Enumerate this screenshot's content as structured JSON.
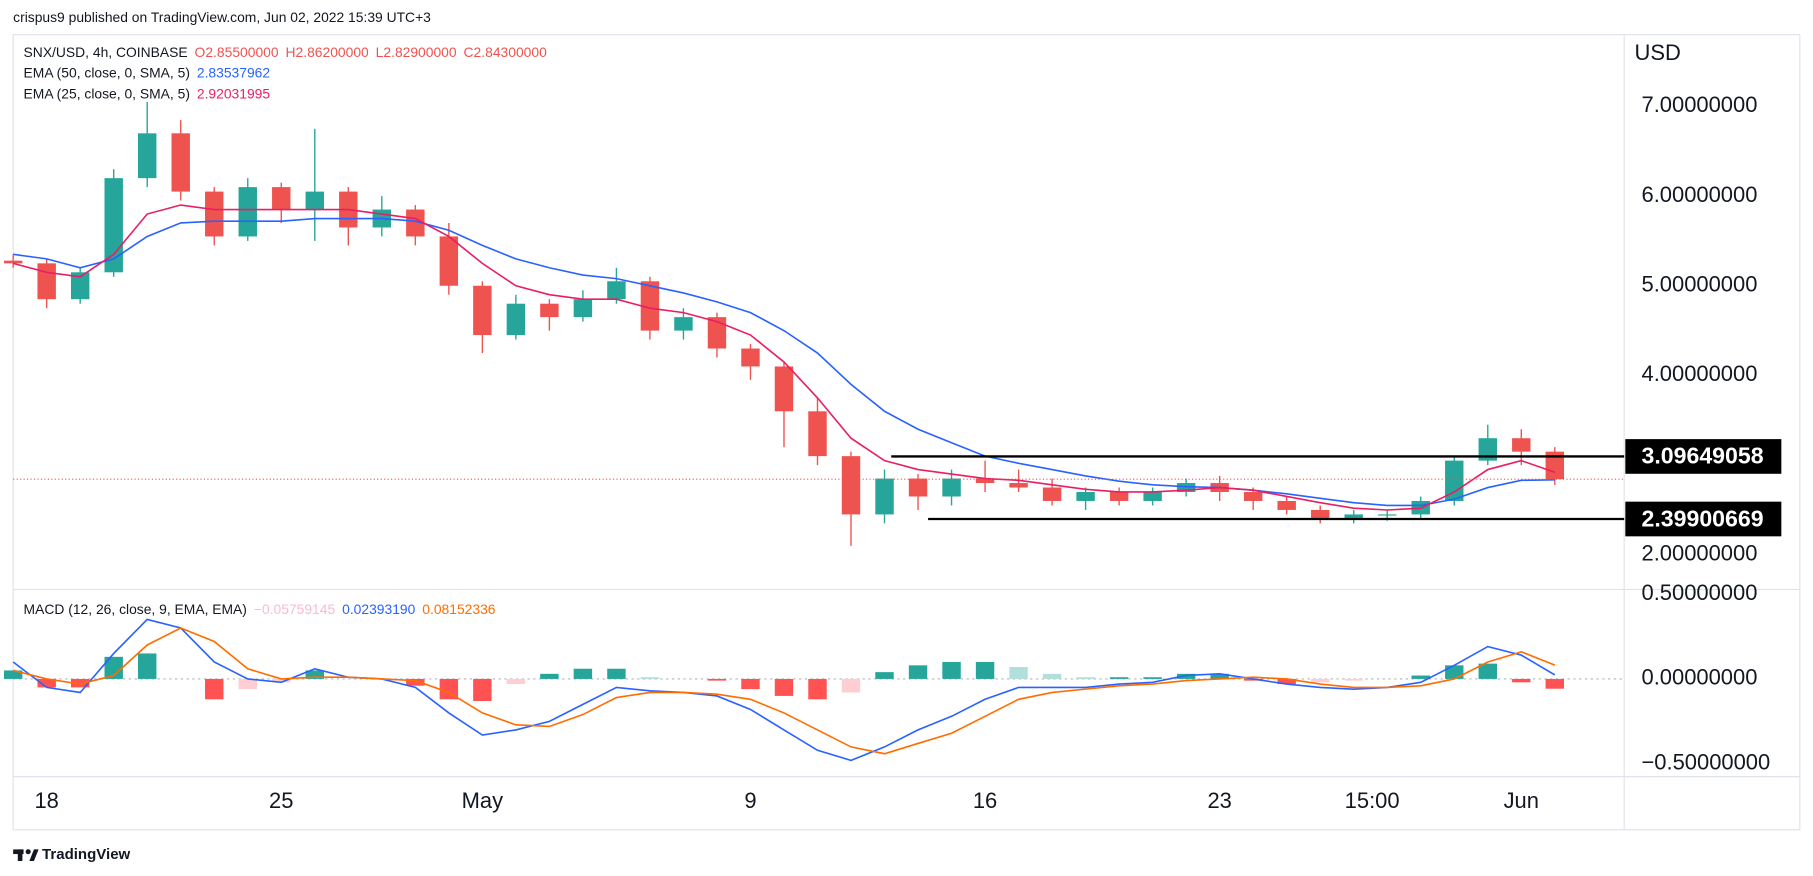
{
  "header": "crispus9 published on TradingView.com, Jun 02, 2022 15:39 UTC+3",
  "footer": "TradingView",
  "chart_data": [
    {
      "type": "candlestick",
      "title": "SNX/USD, 4h, COINBASE",
      "ohlc_legend": [
        {
          "value": 2.855,
          "label": "O2.85500000"
        },
        {
          "value": 2.862,
          "label": "H2.86200000"
        },
        {
          "value": 2.829,
          "label": "L2.82900000"
        },
        {
          "value": 2.843,
          "label": "C2.84300000"
        }
      ],
      "ohlc_color": "#ef5350",
      "up_color": "#26a69a",
      "down_color": "#ef5350",
      "y_label": "USD",
      "x": [
        -1,
        0,
        1,
        2,
        3,
        4,
        5,
        6,
        7,
        8,
        9,
        10,
        11,
        12,
        13,
        14,
        15,
        16,
        17,
        18,
        19,
        20,
        21,
        22,
        23,
        24,
        25,
        26,
        27,
        28,
        29,
        30,
        31,
        32,
        33,
        34,
        35,
        36,
        37,
        38,
        39,
        40,
        41,
        42,
        43,
        44,
        45
      ],
      "open": [
        5.28,
        5.25,
        4.85,
        5.15,
        6.2,
        6.7,
        6.05,
        5.55,
        6.1,
        5.85,
        6.05,
        5.65,
        5.85,
        5.55,
        5.0,
        4.45,
        4.8,
        4.65,
        4.85,
        5.05,
        4.5,
        4.65,
        4.3,
        4.1,
        3.6,
        3.1,
        2.45,
        2.85,
        2.65,
        2.85,
        2.8,
        2.75,
        2.6,
        2.7,
        2.6,
        2.7,
        2.8,
        2.7,
        2.6,
        2.5,
        2.4,
        2.45,
        2.45,
        2.6,
        3.05,
        3.3,
        3.15
      ],
      "high": [
        5.35,
        5.3,
        5.2,
        6.3,
        7.05,
        6.85,
        6.1,
        6.2,
        6.15,
        6.75,
        6.1,
        6.0,
        5.9,
        5.7,
        5.05,
        4.9,
        4.85,
        4.95,
        5.2,
        5.1,
        4.75,
        4.7,
        4.35,
        4.15,
        3.75,
        3.15,
        2.95,
        2.9,
        2.95,
        3.05,
        2.95,
        2.85,
        2.75,
        2.75,
        2.75,
        2.85,
        2.88,
        2.75,
        2.65,
        2.55,
        2.5,
        2.5,
        2.65,
        3.1,
        3.45,
        3.4,
        3.2
      ],
      "low": [
        5.2,
        4.75,
        4.8,
        5.1,
        6.1,
        5.95,
        5.45,
        5.5,
        5.7,
        5.5,
        5.45,
        5.55,
        5.45,
        4.9,
        4.25,
        4.4,
        4.5,
        4.6,
        4.8,
        4.4,
        4.4,
        4.2,
        3.95,
        3.2,
        3.0,
        2.1,
        2.35,
        2.5,
        2.55,
        2.7,
        2.7,
        2.55,
        2.5,
        2.55,
        2.55,
        2.65,
        2.6,
        2.5,
        2.45,
        2.35,
        2.35,
        2.38,
        2.4,
        2.55,
        3.0,
        3.0,
        2.78
      ],
      "close": [
        5.25,
        4.85,
        5.15,
        6.2,
        6.7,
        6.05,
        5.55,
        6.1,
        5.85,
        6.05,
        5.65,
        5.85,
        5.55,
        5.0,
        4.45,
        4.8,
        4.65,
        4.85,
        5.05,
        4.5,
        4.65,
        4.3,
        4.1,
        3.6,
        3.1,
        2.45,
        2.85,
        2.65,
        2.85,
        2.8,
        2.75,
        2.6,
        2.7,
        2.6,
        2.7,
        2.8,
        2.7,
        2.6,
        2.5,
        2.4,
        2.45,
        2.45,
        2.6,
        3.05,
        3.3,
        3.15,
        2.843
      ],
      "series": [
        {
          "name": "EMA (50, close, 0, SMA, 5)",
          "color": "#2962ff",
          "values": [
            5.35,
            5.3,
            5.2,
            5.3,
            5.55,
            5.7,
            5.72,
            5.72,
            5.72,
            5.75,
            5.75,
            5.75,
            5.72,
            5.62,
            5.45,
            5.3,
            5.2,
            5.12,
            5.08,
            5.0,
            4.92,
            4.82,
            4.7,
            4.5,
            4.25,
            3.9,
            3.6,
            3.4,
            3.25,
            3.1,
            3.02,
            2.95,
            2.88,
            2.82,
            2.78,
            2.76,
            2.75,
            2.72,
            2.68,
            2.63,
            2.58,
            2.55,
            2.55,
            2.62,
            2.75,
            2.83,
            2.83537962
          ]
        },
        {
          "name": "EMA (25, close, 0, SMA, 5)",
          "color": "#e91e63",
          "values": [
            5.25,
            5.15,
            5.1,
            5.35,
            5.8,
            5.9,
            5.85,
            5.85,
            5.85,
            5.85,
            5.85,
            5.8,
            5.75,
            5.55,
            5.25,
            5.0,
            4.9,
            4.85,
            4.85,
            4.75,
            4.7,
            4.6,
            4.45,
            4.15,
            3.75,
            3.3,
            3.05,
            2.95,
            2.9,
            2.85,
            2.83,
            2.78,
            2.73,
            2.7,
            2.7,
            2.72,
            2.75,
            2.72,
            2.65,
            2.58,
            2.52,
            2.5,
            2.52,
            2.7,
            2.95,
            3.05,
            2.92031995
          ]
        }
      ],
      "levels": [
        {
          "value": 3.09649058,
          "from": 25.2,
          "color": "#000000"
        },
        {
          "value": 2.39900669,
          "from": 26.3,
          "color": "#000000"
        }
      ],
      "xlim": [
        -1,
        47.07
      ],
      "xticks": [
        {
          "value": 0,
          "label": "18"
        },
        {
          "value": 7,
          "label": "25"
        },
        {
          "value": 13,
          "label": "May"
        },
        {
          "value": 21,
          "label": "9"
        },
        {
          "value": 28,
          "label": "16"
        },
        {
          "value": 35,
          "label": "23"
        },
        {
          "value": 39.55,
          "label": "15:00"
        },
        {
          "value": 44,
          "label": "Jun"
        }
      ],
      "ylim": [
        1.614,
        7.8
      ],
      "yticks": [
        {
          "value": 7,
          "label": "7.00000000"
        },
        {
          "value": 6,
          "label": "6.00000000"
        },
        {
          "value": 5,
          "label": "5.00000000"
        },
        {
          "value": 4,
          "label": "4.00000000"
        },
        {
          "value": 2,
          "label": "2.00000000"
        }
      ],
      "grid": false
    },
    {
      "type": "macd",
      "title": "MACD (12, 26, close, 9, EMA, EMA)",
      "histogram": {
        "values": [
          0.05,
          -0.05,
          -0.05,
          0.13,
          0.15,
          0.0,
          -0.12,
          -0.06,
          -0.02,
          0.05,
          0.0,
          0.0,
          -0.04,
          -0.12,
          -0.13,
          -0.03,
          0.03,
          0.06,
          0.06,
          0.01,
          0.0,
          -0.01,
          -0.06,
          -0.1,
          -0.12,
          -0.08,
          0.04,
          0.08,
          0.1,
          0.1,
          0.07,
          0.03,
          0.01,
          0.01,
          0.01,
          0.03,
          0.03,
          -0.01,
          -0.03,
          -0.02,
          -0.01,
          0.0,
          0.02,
          0.08,
          0.09,
          -0.02,
          -0.05759145
        ],
        "colors": [
          "#26a69a",
          "#b2dfdb",
          "#ff5252",
          "#ffcdd2"
        ],
        "legend_color": "#f8bbd0"
      },
      "macd": {
        "color": "#2962ff",
        "values": [
          0.1,
          -0.05,
          -0.08,
          0.15,
          0.35,
          0.3,
          0.1,
          0.0,
          -0.02,
          0.06,
          0.01,
          0.0,
          -0.05,
          -0.2,
          -0.33,
          -0.3,
          -0.25,
          -0.15,
          -0.05,
          -0.07,
          -0.08,
          -0.1,
          -0.18,
          -0.3,
          -0.42,
          -0.48,
          -0.4,
          -0.3,
          -0.22,
          -0.12,
          -0.05,
          -0.05,
          -0.05,
          -0.03,
          -0.02,
          0.02,
          0.03,
          0.0,
          -0.03,
          -0.05,
          -0.06,
          -0.05,
          -0.02,
          0.08,
          0.19,
          0.14,
          0.0239319
        ]
      },
      "signal": {
        "color": "#ff6d00",
        "values": [
          0.05,
          0.0,
          -0.03,
          0.02,
          0.2,
          0.3,
          0.22,
          0.06,
          0.0,
          0.01,
          0.01,
          0.0,
          -0.01,
          -0.08,
          -0.2,
          -0.27,
          -0.28,
          -0.21,
          -0.11,
          -0.08,
          -0.08,
          -0.09,
          -0.12,
          -0.2,
          -0.3,
          -0.4,
          -0.44,
          -0.38,
          -0.32,
          -0.22,
          -0.12,
          -0.08,
          -0.06,
          -0.04,
          -0.03,
          -0.01,
          0.0,
          0.01,
          0.0,
          -0.03,
          -0.05,
          -0.05,
          -0.04,
          0.0,
          0.1,
          0.16,
          0.08152336
        ]
      },
      "legend_values": [
        {
          "value": -0.05759145,
          "label": "−0.05759145"
        },
        {
          "value": 0.0239319,
          "label": "0.02393190"
        },
        {
          "value": 0.08152336,
          "label": "0.08152336"
        }
      ],
      "ylim": [
        -0.575,
        0.527
      ],
      "yticks": [
        {
          "value": 0.5,
          "label": "0.50000000"
        },
        {
          "value": 0,
          "label": "0.00000000"
        },
        {
          "value": -0.5,
          "label": "−0.50000000"
        }
      ]
    }
  ]
}
